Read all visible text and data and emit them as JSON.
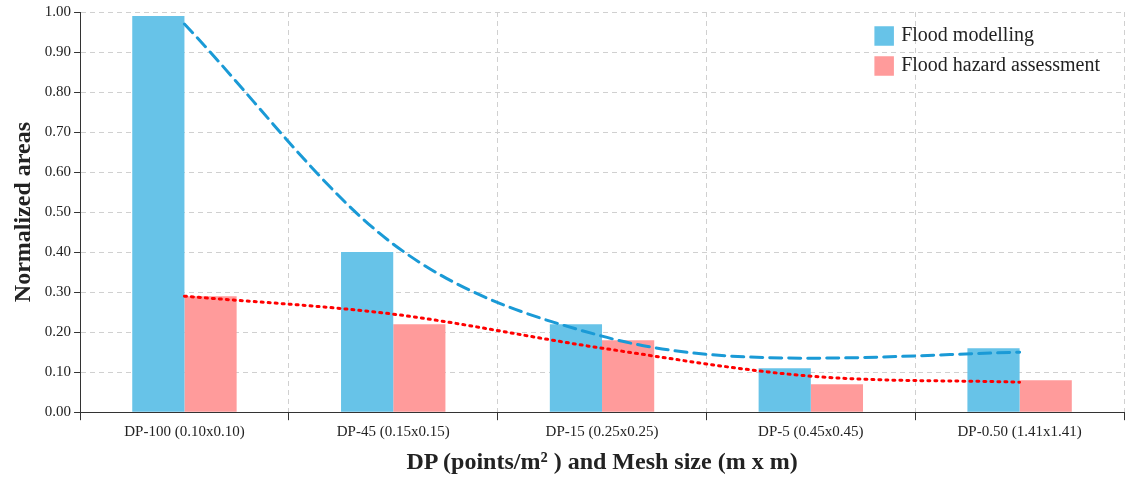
{
  "chart_data": {
    "type": "bar",
    "xlabel": "DP (points/m² ) and Mesh size (m x m)",
    "ylabel": "Normalized areas",
    "categories": [
      "DP-100 (0.10x0.10)",
      "DP-45 (0.15x0.15)",
      "DP-15 (0.25x0.25)",
      "DP-5 (0.45x0.45)",
      "DP-0.50 (1.41x1.41)"
    ],
    "series": [
      {
        "name": "Flood modelling",
        "color": "#67c3e8",
        "values": [
          0.99,
          0.4,
          0.22,
          0.11,
          0.16
        ]
      },
      {
        "name": "Flood hazard assessment",
        "color": "#ff9b9b",
        "values": [
          0.29,
          0.22,
          0.18,
          0.07,
          0.08
        ]
      },
      {
        "type": "line",
        "color": "#1a9ad6",
        "line_style": "dashed",
        "x": [
          "DP-100 (0.10x0.10)",
          "DP-45 (0.15x0.15)",
          "DP-15 (0.25x0.25)",
          "DP-5 (0.45x0.45)",
          "DP-0.50 (1.41x1.41)"
        ],
        "values": [
          0.97,
          0.42,
          0.19,
          0.135,
          0.15
        ]
      },
      {
        "type": "line",
        "color": "#ff0000",
        "line_style": "dotted",
        "x": [
          "DP-100 (0.10x0.10)",
          "DP-45 (0.15x0.15)",
          "DP-15 (0.25x0.25)",
          "DP-5 (0.45x0.45)",
          "DP-0.50 (1.41x1.41)"
        ],
        "values": [
          0.29,
          0.245,
          0.16,
          0.09,
          0.075
        ]
      }
    ],
    "ylim": [
      0,
      1
    ],
    "yticks": [
      {
        "value": 0,
        "label": "0.00"
      },
      {
        "value": 0.1,
        "label": "0.10"
      },
      {
        "value": 0.2,
        "label": "0.20"
      },
      {
        "value": 0.3,
        "label": "0.30"
      },
      {
        "value": 0.4,
        "label": "0.40"
      },
      {
        "value": 0.5,
        "label": "0.50"
      },
      {
        "value": 0.6,
        "label": "0.60"
      },
      {
        "value": 0.7,
        "label": "0.70"
      },
      {
        "value": 0.8,
        "label": "0.80"
      },
      {
        "value": 0.9,
        "label": "0.90"
      },
      {
        "value": 1,
        "label": "1.00"
      }
    ],
    "grid": true,
    "legend": "top right",
    "marker": "none"
  }
}
